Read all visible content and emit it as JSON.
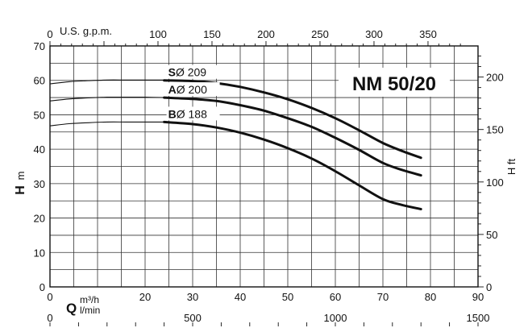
{
  "chart_data": {
    "type": "line",
    "title": "NM 50/20",
    "xlabel": "Q",
    "xlabel_units_top": "m³/h",
    "xlabel_units_bottom": "l/min",
    "ylabel_left": "H",
    "ylabel_left_unit": "m",
    "ylabel_right": "H ft",
    "top_axis_label": "U.S. g.p.m.",
    "xlim": [
      0,
      90
    ],
    "ylim": [
      0,
      70
    ],
    "x_ticks": [
      {
        "value": 0,
        "label": "0"
      },
      {
        "value": 20,
        "label": "20"
      },
      {
        "value": 30,
        "label": "30"
      },
      {
        "value": 40,
        "label": "40"
      },
      {
        "value": 50,
        "label": "50"
      },
      {
        "value": 60,
        "label": "60"
      },
      {
        "value": 70,
        "label": "70"
      },
      {
        "value": 80,
        "label": "80"
      },
      {
        "value": 90,
        "label": "90"
      }
    ],
    "y_ticks": [
      {
        "value": 0,
        "label": "0"
      },
      {
        "value": 10,
        "label": "10"
      },
      {
        "value": 20,
        "label": "20"
      },
      {
        "value": 30,
        "label": "30"
      },
      {
        "value": 40,
        "label": "40"
      },
      {
        "value": 50,
        "label": "50"
      },
      {
        "value": 60,
        "label": "60"
      },
      {
        "value": 70,
        "label": "70"
      }
    ],
    "top_ticks_gpm": [
      {
        "value": 0,
        "label": "0"
      },
      {
        "value": 100,
        "label": "100"
      },
      {
        "value": 150,
        "label": "150"
      },
      {
        "value": 200,
        "label": "200"
      },
      {
        "value": 250,
        "label": "250"
      },
      {
        "value": 300,
        "label": "300"
      },
      {
        "value": 350,
        "label": "350"
      }
    ],
    "right_ticks_ft": [
      {
        "value": 0,
        "label": "0"
      },
      {
        "value": 50,
        "label": "50"
      },
      {
        "value": 100,
        "label": "100"
      },
      {
        "value": 150,
        "label": "150"
      },
      {
        "value": 200,
        "label": "200"
      }
    ],
    "bottom_ticks_lmin": [
      {
        "value": 0,
        "label": "0"
      },
      {
        "value": 500,
        "label": "500"
      },
      {
        "value": 1000,
        "label": "1000"
      },
      {
        "value": 1500,
        "label": "1500"
      }
    ],
    "series": [
      {
        "name": "S",
        "diameter": "Ø 209",
        "thin_x": [
          0,
          4,
          8,
          12,
          16,
          20,
          24
        ],
        "thin_y": [
          59,
          59.6,
          59.9,
          60.1,
          60.1,
          60.1,
          60.1
        ],
        "x": [
          24,
          30,
          35,
          40,
          45,
          50,
          55,
          60,
          65,
          70,
          74,
          78
        ],
        "y": [
          60,
          59.8,
          59.2,
          58.1,
          56.5,
          54.5,
          52,
          49,
          45.5,
          41.8,
          39.5,
          37.5
        ]
      },
      {
        "name": "A",
        "diameter": "Ø 200",
        "thin_x": [
          0,
          4,
          8,
          12,
          16,
          20,
          24
        ],
        "thin_y": [
          54,
          54.6,
          54.9,
          55.1,
          55.1,
          55.1,
          55
        ],
        "x": [
          24,
          30,
          35,
          40,
          45,
          50,
          55,
          60,
          65,
          70,
          74,
          78
        ],
        "y": [
          55,
          54.6,
          54,
          52.8,
          51.2,
          49,
          46.5,
          43.3,
          39.8,
          36,
          34,
          32.4
        ]
      },
      {
        "name": "B",
        "diameter": "Ø 188",
        "thin_x": [
          0,
          4,
          8,
          12,
          16,
          20,
          24
        ],
        "thin_y": [
          46.8,
          47.4,
          47.7,
          47.9,
          47.9,
          47.9,
          47.9
        ],
        "x": [
          24,
          30,
          35,
          40,
          45,
          50,
          55,
          60,
          65,
          70,
          74,
          78
        ],
        "y": [
          47.9,
          47.3,
          46.3,
          44.8,
          42.8,
          40.3,
          37.3,
          33.6,
          29.5,
          25.5,
          23.8,
          22.6
        ]
      }
    ]
  }
}
